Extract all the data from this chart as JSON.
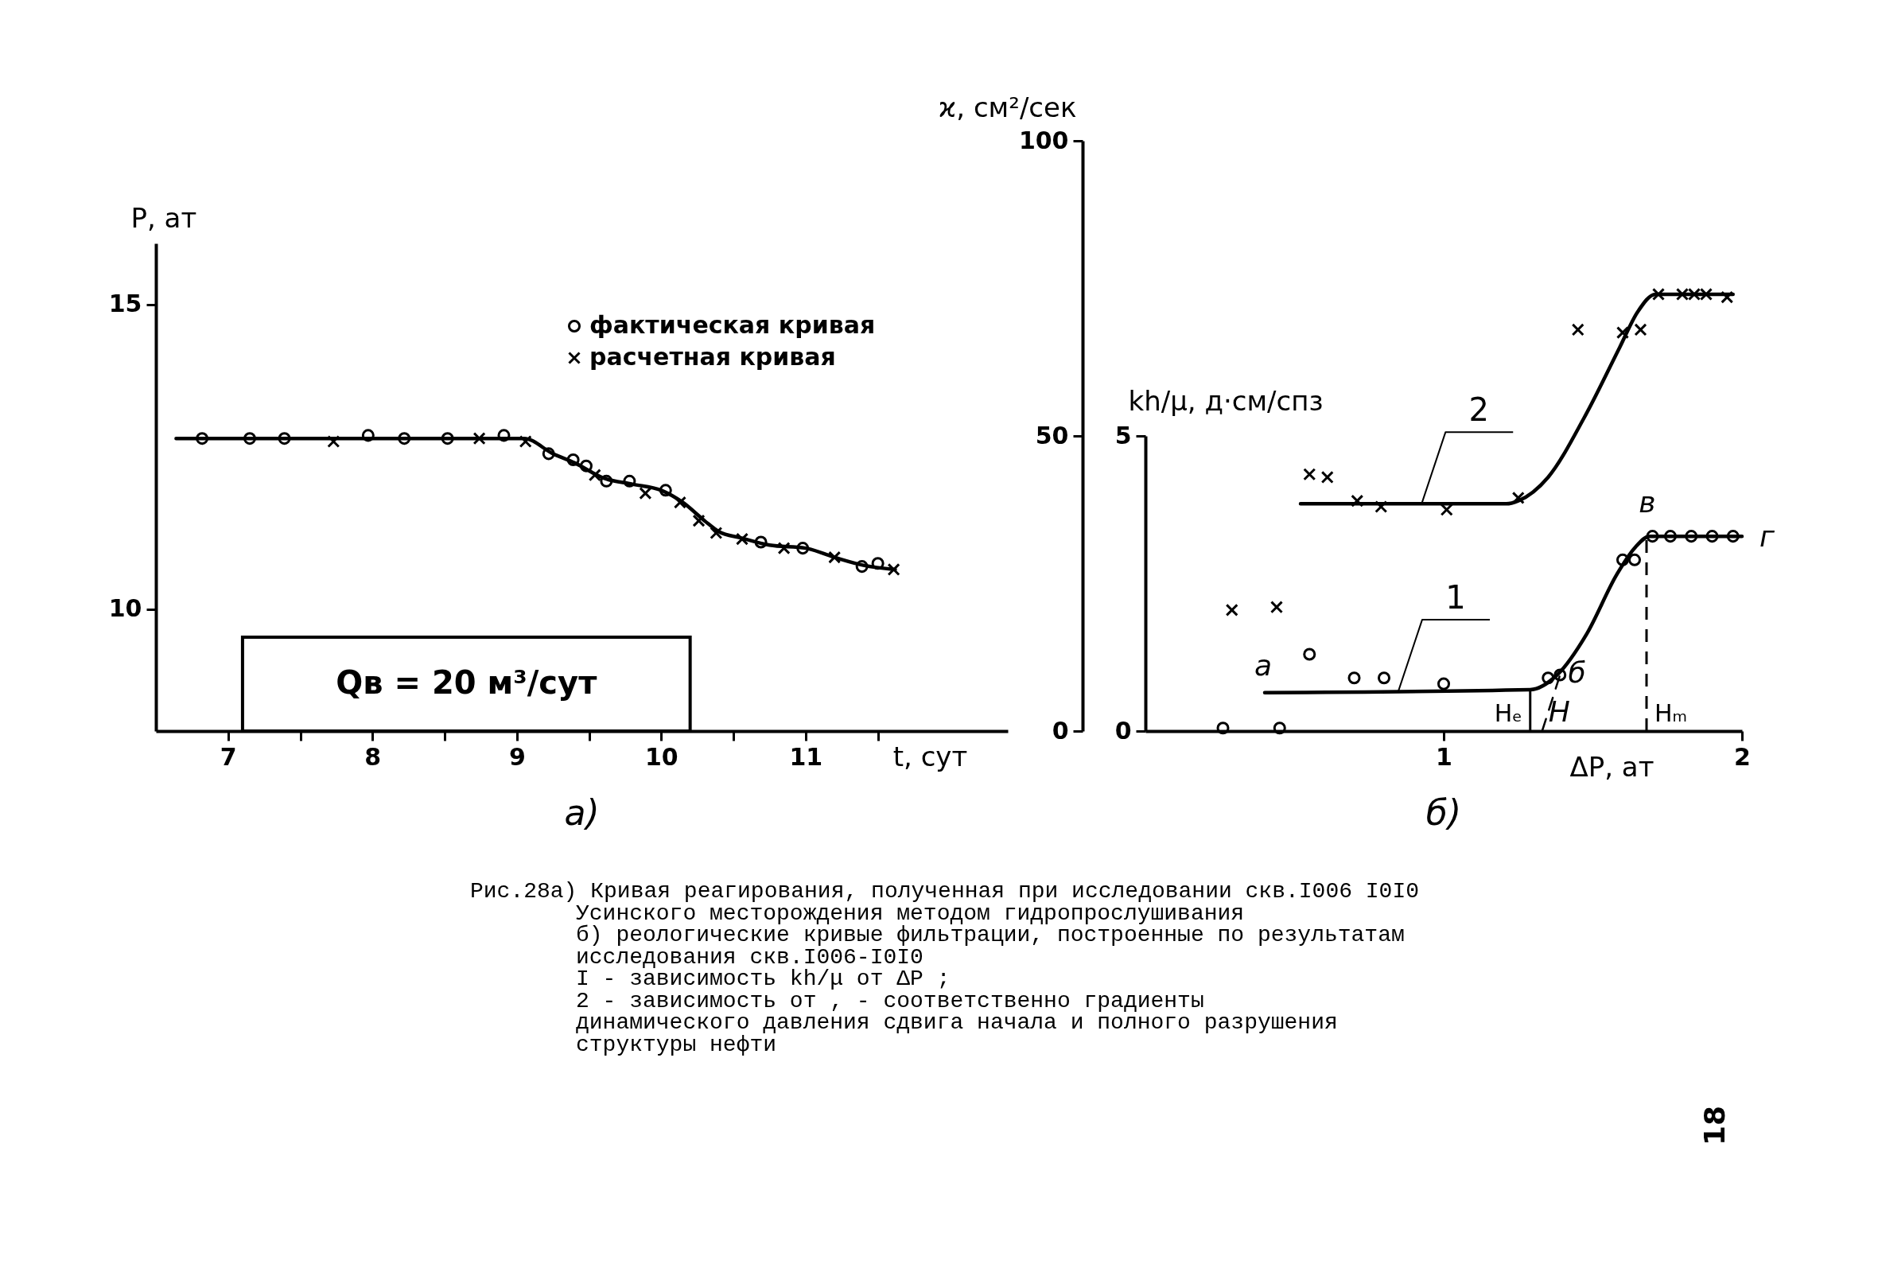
{
  "chart_data": [
    {
      "type": "line",
      "title": "а)",
      "xlabel": "t, сут",
      "ylabel": "P, ат",
      "xlim": [
        6.5,
        12.4
      ],
      "ylim": [
        8,
        16
      ],
      "xticks": [
        7,
        {
          "value": 7.5,
          "label": null
        },
        8,
        {
          "value": 8.5,
          "label": null
        },
        9,
        {
          "value": 9.5,
          "label": null
        },
        10,
        {
          "value": 10.5,
          "label": null
        },
        11,
        {
          "value": 11.5,
          "label": null
        }
      ],
      "yticks": [
        10,
        15
      ],
      "legend": "top right",
      "series": [
        {
          "color": "#000000",
          "marker": "none",
          "x": [
            6.64,
            7.5,
            8.5,
            9.05,
            9.25,
            9.4,
            9.6,
            9.8,
            10.0,
            10.15,
            10.3,
            10.4,
            10.55,
            10.75,
            11.0,
            11.2,
            11.4,
            11.62
          ],
          "values": [
            12.8,
            12.8,
            12.8,
            12.8,
            12.55,
            12.4,
            12.15,
            12.05,
            11.95,
            11.75,
            11.45,
            11.27,
            11.17,
            11.05,
            11.0,
            10.85,
            10.72,
            10.65
          ]
        },
        {
          "type": "scatter",
          "name": "фактическая кривая",
          "color": "#000000",
          "marker": "circle",
          "x": [
            6.82,
            7.15,
            7.39,
            7.97,
            8.22,
            8.52,
            8.91,
            9.22,
            9.39,
            9.48,
            9.62,
            9.78,
            10.03,
            10.69,
            10.98,
            11.39,
            11.5
          ],
          "values": [
            12.8,
            12.8,
            12.8,
            12.85,
            12.8,
            12.8,
            12.85,
            12.55,
            12.45,
            12.35,
            12.1,
            12.1,
            11.95,
            11.1,
            11.0,
            10.7,
            10.75
          ]
        },
        {
          "type": "scatter",
          "name": "расчетная кривая",
          "color": "#000000",
          "marker": "cross",
          "x": [
            7.73,
            8.74,
            9.06,
            9.54,
            9.89,
            10.13,
            10.26,
            10.38,
            10.56,
            10.85,
            11.2,
            11.61
          ],
          "values": [
            12.75,
            12.8,
            12.75,
            12.2,
            11.9,
            11.75,
            11.45,
            11.25,
            11.15,
            11.0,
            10.85,
            10.65
          ]
        }
      ],
      "bands": [
        {
          "axis": "x",
          "from": 7.1,
          "to": 10.2,
          "label": "Qв = 20 м³/сут",
          "color": "#ffffff"
        }
      ],
      "annotations": [
        "Рис.28а) Кривая реагирования, полученная при исследовании скв.I006 I0I0",
        "Усинского месторождения методом гидропрослушивания"
      ]
    },
    {
      "type": "line",
      "title": "б)",
      "xlabel": "ΔP, ат",
      "ylabel": "ϰ, см²/сек",
      "y2label": "kh/μ, д·см/спз",
      "xlim": [
        0,
        2
      ],
      "ylim": [
        0,
        100
      ],
      "y2lim": [
        0,
        5
      ],
      "xticks": [
        1,
        2
      ],
      "yticks": [
        0,
        50,
        100
      ],
      "y2ticks": [
        0,
        5
      ],
      "series": [
        {
          "name": "1",
          "axis": "y2",
          "color": "#000000",
          "marker": "none",
          "x": [
            0.4,
            1.29,
            1.38,
            1.48,
            1.58,
            1.64,
            1.69,
            2.0
          ],
          "values": [
            0.65,
            0.7,
            0.95,
            1.65,
            2.65,
            3.1,
            3.3,
            3.3
          ]
        },
        {
          "type": "scatter",
          "axis": "y2",
          "color": "#000000",
          "marker": "circle",
          "x": [
            0.26,
            0.45,
            0.55,
            0.7,
            0.8,
            1.0,
            1.35,
            1.39,
            1.6,
            1.64,
            1.7,
            1.76,
            1.83,
            1.9,
            1.97
          ],
          "values": [
            0.05,
            0.05,
            1.3,
            0.9,
            0.9,
            0.8,
            0.9,
            0.95,
            2.9,
            2.9,
            3.3,
            3.3,
            3.3,
            3.3,
            3.3
          ]
        },
        {
          "axis": "y2",
          "color": "#000000",
          "marker": "none",
          "line_style": "dashed",
          "x": [
            1.33,
            1.39
          ],
          "values": [
            0,
            0.95
          ]
        },
        {
          "name": "2",
          "color": "#000000",
          "marker": "none",
          "x": [
            0.52,
            1.21,
            1.25,
            1.35,
            1.47,
            1.59,
            1.65,
            1.71,
            1.97
          ],
          "values": [
            38.5,
            38.5,
            39,
            43,
            53,
            65,
            71,
            74,
            74
          ]
        },
        {
          "type": "scatter",
          "color": "#000000",
          "marker": "cross",
          "x": [
            0.29,
            0.44,
            0.55,
            0.61,
            0.71,
            0.79,
            1.01,
            1.25,
            1.45,
            1.6,
            1.66,
            1.72,
            1.8,
            1.84,
            1.88,
            1.95
          ],
          "values": [
            20.5,
            21,
            43.5,
            43,
            39,
            38,
            37.5,
            39.5,
            68,
            67.5,
            68,
            74,
            74,
            74,
            74,
            73.5
          ]
        }
      ],
      "ref_lines": [
        {
          "axis": "x",
          "value": 1.29,
          "label": "Hₑ"
        },
        {
          "axis": "x",
          "value": 1.68,
          "label": "Hₘ",
          "line_style": "dashed"
        }
      ],
      "annotations": [
        {
          "text": "а",
          "x": 0.4,
          "y": 6.5
        },
        {
          "text": "б",
          "x": 1.38,
          "y": 9.5
        },
        {
          "text": "в",
          "x": 1.69,
          "y": 33
        },
        {
          "text": "г",
          "x": 2.0,
          "y": 33
        },
        {
          "text": "H",
          "x": 1.33,
          "y": 0
        },
        "б) реологические кривые фильтрации, построенные по результатам",
        "исследования скв.I006-I0I0",
        "I - зависимость kh/μ от ΔP ;",
        "2 - зависимость от , - соответственно градиенты",
        "динамического давления сдвига начала и полного разрушения",
        "структуры нефти",
        "18"
      ]
    }
  ]
}
